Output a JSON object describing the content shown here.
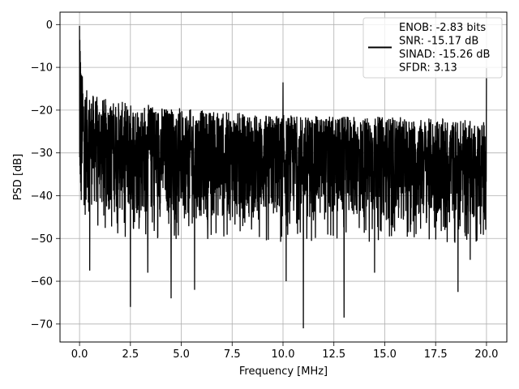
{
  "chart_data": {
    "type": "line",
    "title": "",
    "xlabel": "Frequency [MHz]",
    "ylabel": "PSD [dB]",
    "xlim": [
      -0.96,
      21.0
    ],
    "ylim": [
      -74.2,
      2.9
    ],
    "x_ticks": [
      0.0,
      2.5,
      5.0,
      7.5,
      10.0,
      12.5,
      15.0,
      17.5,
      20.0
    ],
    "x_tick_labels": [
      "0.0",
      "2.5",
      "5.0",
      "7.5",
      "10.0",
      "12.5",
      "15.0",
      "17.5",
      "20.0"
    ],
    "y_ticks": [
      0,
      -10,
      -20,
      -30,
      -40,
      -50,
      -60,
      -70
    ],
    "y_tick_labels": [
      "0",
      "−10",
      "−20",
      "−30",
      "−40",
      "−50",
      "−60",
      "−70"
    ],
    "grid": true,
    "legend_position": "top-right",
    "line_color": "#000000",
    "legend": [
      "ENOB: -2.83 bits",
      "SNR: -15.17 dB",
      "SINAD: -15.26 dB",
      "SFDR: 3.13"
    ],
    "series": [
      {
        "x_range": [
          0.0,
          20.0
        ],
        "upper_envelope": [
          [
            0.0,
            -1
          ],
          [
            0.05,
            -8
          ],
          [
            0.15,
            -12
          ],
          [
            0.3,
            -15
          ],
          [
            0.5,
            -16
          ],
          [
            1.0,
            -17
          ],
          [
            2.0,
            -18
          ],
          [
            3.0,
            -18.5
          ],
          [
            4.0,
            -19
          ],
          [
            5.0,
            -19.5
          ],
          [
            6.0,
            -20
          ],
          [
            7.5,
            -20.5
          ],
          [
            9.0,
            -21
          ],
          [
            10.0,
            -21
          ],
          [
            12.5,
            -21.5
          ],
          [
            15.0,
            -21.5
          ],
          [
            17.5,
            -22
          ],
          [
            20.0,
            -22.5
          ]
        ],
        "lower_envelope": [
          [
            0.0,
            -38
          ],
          [
            0.3,
            -42
          ],
          [
            1.0,
            -44
          ],
          [
            2.5,
            -45
          ],
          [
            5.0,
            -45.5
          ],
          [
            7.5,
            -46
          ],
          [
            10.0,
            -46
          ],
          [
            12.5,
            -46
          ],
          [
            15.0,
            -46
          ],
          [
            17.5,
            -46
          ],
          [
            20.0,
            -46
          ]
        ],
        "peaks": [
          [
            0.0,
            -0.3
          ],
          [
            10.0,
            -13.5
          ],
          [
            20.0,
            -10.2
          ]
        ],
        "dips": [
          [
            0.5,
            -57.5
          ],
          [
            2.5,
            -66
          ],
          [
            3.35,
            -58
          ],
          [
            4.5,
            -64
          ],
          [
            5.65,
            -62
          ],
          [
            10.15,
            -60
          ],
          [
            11.0,
            -71
          ],
          [
            13.0,
            -68.5
          ],
          [
            14.5,
            -58
          ],
          [
            18.6,
            -62.5
          ],
          [
            19.2,
            -55
          ]
        ]
      }
    ]
  }
}
